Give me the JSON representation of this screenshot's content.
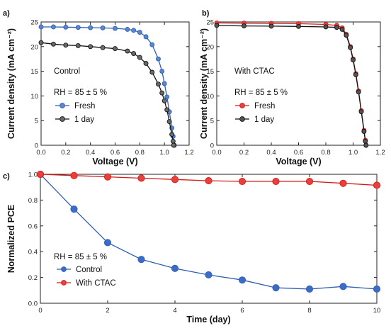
{
  "chart_data": [
    {
      "type": "line",
      "panel_label": "a)",
      "xlabel": "Voltage (V)",
      "ylabel": "Current density (mA cm⁻²)",
      "xlim": [
        0,
        1.2
      ],
      "ylim": [
        0,
        25
      ],
      "xticks": [
        "0.0",
        "0.2",
        "0.4",
        "0.6",
        "0.8",
        "1.0",
        "1.2"
      ],
      "yticks": [
        "0",
        "5",
        "10",
        "15",
        "20",
        "25"
      ],
      "annotations": [
        "Control",
        "RH = 85 ± 5 %"
      ],
      "legend_position": "left-middle",
      "series": [
        {
          "name": "Fresh",
          "color": "#2f5fb3",
          "marker_color": "#5a86d0",
          "points": [
            [
              0.0,
              24.0
            ],
            [
              0.1,
              24.0
            ],
            [
              0.2,
              23.95
            ],
            [
              0.3,
              23.9
            ],
            [
              0.4,
              23.85
            ],
            [
              0.5,
              23.8
            ],
            [
              0.6,
              23.7
            ],
            [
              0.7,
              23.5
            ],
            [
              0.75,
              23.3
            ],
            [
              0.8,
              22.9
            ],
            [
              0.85,
              22.0
            ],
            [
              0.9,
              20.4
            ],
            [
              0.95,
              17.5
            ],
            [
              0.98,
              15.0
            ],
            [
              1.0,
              12.5
            ],
            [
              1.02,
              9.8
            ],
            [
              1.04,
              6.8
            ],
            [
              1.06,
              3.5
            ],
            [
              1.07,
              1.8
            ],
            [
              1.08,
              0.0
            ]
          ]
        },
        {
          "name": "1 day",
          "color": "#111111",
          "marker_color": "#6b6b6b",
          "points": [
            [
              0.0,
              20.8
            ],
            [
              0.1,
              20.5
            ],
            [
              0.2,
              20.3
            ],
            [
              0.3,
              20.2
            ],
            [
              0.4,
              20.0
            ],
            [
              0.5,
              19.8
            ],
            [
              0.6,
              19.6
            ],
            [
              0.7,
              19.1
            ],
            [
              0.75,
              18.6
            ],
            [
              0.8,
              17.8
            ],
            [
              0.85,
              16.6
            ],
            [
              0.9,
              14.8
            ],
            [
              0.95,
              12.4
            ],
            [
              0.98,
              10.6
            ],
            [
              1.0,
              9.0
            ],
            [
              1.02,
              7.2
            ],
            [
              1.04,
              4.8
            ],
            [
              1.06,
              2.2
            ],
            [
              1.07,
              0.8
            ],
            [
              1.075,
              0.0
            ]
          ]
        }
      ]
    },
    {
      "type": "line",
      "panel_label": "b)",
      "xlabel": "Voltage (V)",
      "ylabel": "Current density (mA cm⁻²)",
      "xlim": [
        0,
        1.2
      ],
      "ylim": [
        0,
        25
      ],
      "xticks": [
        "0.0",
        "0.2",
        "0.4",
        "0.6",
        "0.8",
        "1.0",
        "1.2"
      ],
      "yticks": [
        "0",
        "5",
        "10",
        "15",
        "20",
        "25"
      ],
      "annotations": [
        "With CTAC",
        "RH = 85 ± 5 %"
      ],
      "legend_position": "left-middle",
      "series": [
        {
          "name": "Fresh",
          "color": "#d41a1a",
          "marker_color": "#e8403b",
          "points": [
            [
              0.0,
              24.8
            ],
            [
              0.2,
              24.75
            ],
            [
              0.4,
              24.7
            ],
            [
              0.6,
              24.65
            ],
            [
              0.8,
              24.5
            ],
            [
              0.88,
              24.3
            ],
            [
              0.92,
              23.8
            ],
            [
              0.95,
              22.5
            ],
            [
              0.98,
              20.0
            ],
            [
              1.0,
              17.5
            ],
            [
              1.02,
              14.5
            ],
            [
              1.04,
              11.0
            ],
            [
              1.06,
              7.0
            ],
            [
              1.08,
              3.0
            ],
            [
              1.09,
              1.0
            ],
            [
              1.095,
              0.0
            ]
          ]
        },
        {
          "name": "1 day",
          "color": "#111111",
          "marker_color": "#555555",
          "points": [
            [
              0.0,
              24.3
            ],
            [
              0.2,
              24.2
            ],
            [
              0.4,
              24.15
            ],
            [
              0.6,
              24.1
            ],
            [
              0.8,
              24.0
            ],
            [
              0.88,
              23.9
            ],
            [
              0.92,
              23.5
            ],
            [
              0.95,
              22.3
            ],
            [
              0.98,
              19.8
            ],
            [
              1.0,
              17.3
            ],
            [
              1.02,
              14.3
            ],
            [
              1.04,
              10.8
            ],
            [
              1.06,
              6.8
            ],
            [
              1.08,
              2.8
            ],
            [
              1.09,
              0.8
            ],
            [
              1.095,
              0.0
            ]
          ]
        }
      ]
    },
    {
      "type": "line",
      "panel_label": "c)",
      "xlabel": "Time (day)",
      "ylabel": "Normalized PCE",
      "xlim": [
        0,
        10
      ],
      "ylim": [
        0,
        1.0
      ],
      "xticks": [
        "0",
        "2",
        "4",
        "6",
        "8",
        "10"
      ],
      "yticks": [
        "0.0",
        "0.2",
        "0.4",
        "0.6",
        "0.8",
        "1.0"
      ],
      "annotations": [
        "RH = 85 ± 5 %"
      ],
      "legend_position": "bottom-left",
      "series": [
        {
          "name": "Control",
          "color": "#2f5fb3",
          "marker_color": "#3d6cc6",
          "x": [
            0,
            1,
            2,
            3,
            4,
            5,
            6,
            7,
            8,
            9,
            10
          ],
          "y": [
            1.0,
            0.73,
            0.47,
            0.34,
            0.27,
            0.22,
            0.18,
            0.12,
            0.11,
            0.13,
            0.11
          ]
        },
        {
          "name": "With CTAC",
          "color": "#d41a1a",
          "marker_color": "#e8403b",
          "x": [
            0,
            1,
            2,
            3,
            4,
            5,
            6,
            7,
            8,
            9,
            10
          ],
          "y": [
            1.0,
            0.99,
            0.98,
            0.97,
            0.96,
            0.95,
            0.945,
            0.945,
            0.945,
            0.93,
            0.915
          ]
        }
      ]
    }
  ]
}
